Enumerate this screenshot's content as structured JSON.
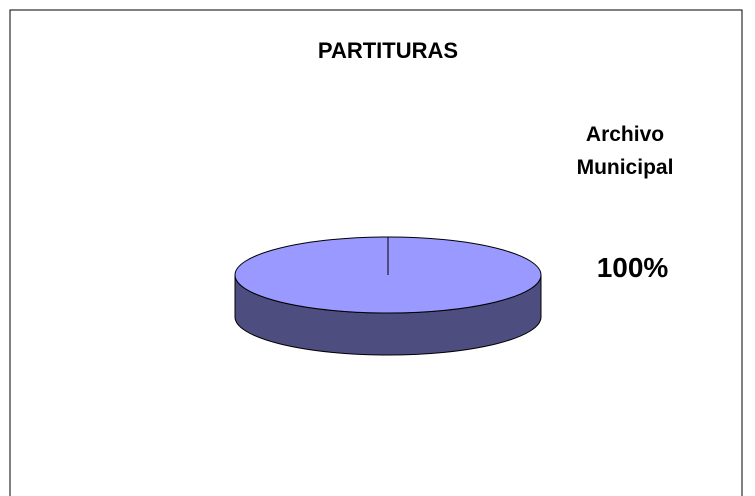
{
  "chart_data": {
    "type": "pie",
    "title": "PARTITURAS",
    "categories": [
      "Archivo Municipal"
    ],
    "values": [
      100
    ],
    "value_labels": [
      "100%"
    ],
    "colors": [
      "#9999ff"
    ]
  }
}
